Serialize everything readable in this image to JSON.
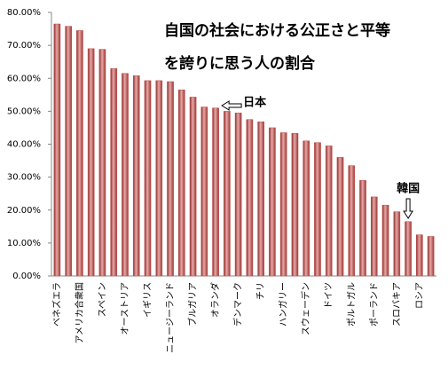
{
  "chart_data": {
    "type": "bar",
    "title": [
      "自国の社会における公正さと平等",
      "を誇りに思う人の割合"
    ],
    "categories": [
      "ベネズエラ",
      null,
      "アメリカ合衆国",
      null,
      "スペイン",
      null,
      "オーストリア",
      null,
      "イギリス",
      null,
      "ニュージーランド",
      null,
      "ブルガリア",
      null,
      "オランダ",
      null,
      "デンマーク",
      null,
      "チリ",
      null,
      "ハンガリー",
      null,
      "スウェーデン",
      null,
      "ドイツ",
      null,
      "ポルトガル",
      null,
      "ポーランド",
      null,
      "スロバキア",
      null,
      "ロシア",
      null
    ],
    "values": [
      76.5,
      75.8,
      74.5,
      69,
      68.8,
      63,
      61.5,
      60.8,
      59.3,
      59.3,
      59,
      56.5,
      54.3,
      51.3,
      51,
      50,
      49.5,
      47.5,
      46.8,
      45,
      43.5,
      43.3,
      41,
      40.5,
      39.5,
      36,
      33.5,
      29,
      24,
      21.5,
      19.5,
      16.5,
      12.5,
      12
    ],
    "color": "#c0504d",
    "ylim": [
      0,
      80
    ],
    "yticks": [
      {
        "value": 0,
        "label": "0.00%"
      },
      {
        "value": 10,
        "label": "10.00%"
      },
      {
        "value": 20,
        "label": "20.00%"
      },
      {
        "value": 30,
        "label": "30.00%"
      },
      {
        "value": 40,
        "label": "40.00%"
      },
      {
        "value": 50,
        "label": "50.00%"
      },
      {
        "value": 60,
        "label": "60.00%"
      },
      {
        "value": 70,
        "label": "70.00%"
      },
      {
        "value": 80,
        "label": "80.00%"
      }
    ],
    "grid": false,
    "annotations": [
      "日本",
      "韓国"
    ]
  }
}
